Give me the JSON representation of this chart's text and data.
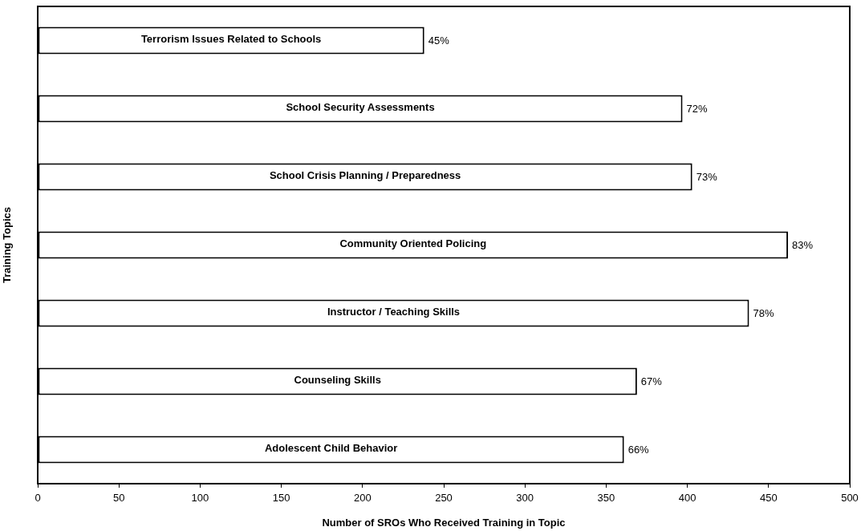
{
  "chart_data": {
    "type": "bar",
    "orientation": "horizontal",
    "xlabel": "Number of SROs Who Received Training in Topic",
    "ylabel": "Training Topics",
    "categories": [
      "Terrorism Issues Related to Schools",
      "School Security Assessments",
      "School Crisis Planning / Preparedness",
      "Community Oriented Policing",
      "Instructor / Teaching Skills",
      "Counseling Skills",
      "Adolescent Child Behavior"
    ],
    "values": [
      238,
      397,
      403,
      462,
      438,
      369,
      361
    ],
    "color": "#ffffff",
    "xlim": [
      0,
      500
    ],
    "xticks": [
      0,
      50,
      100,
      150,
      200,
      250,
      300,
      350,
      400,
      450,
      500
    ],
    "tick_labels": "x",
    "annotations": [
      {
        "text": "45%",
        "x": 238,
        "y": "Terrorism Issues Related to Schools"
      },
      {
        "text": "72%",
        "x": 397,
        "y": "School Security Assessments"
      },
      {
        "text": "73%",
        "x": 403,
        "y": "School Crisis Planning / Preparedness"
      },
      {
        "text": "83%",
        "x": 462,
        "y": "Community Oriented Policing"
      },
      {
        "text": "78%",
        "x": 438,
        "y": "Instructor / Teaching Skills"
      },
      {
        "text": "67%",
        "x": 369,
        "y": "Counseling Skills"
      },
      {
        "text": "66%",
        "x": 361,
        "y": "Adolescent Child Behavior"
      }
    ]
  }
}
